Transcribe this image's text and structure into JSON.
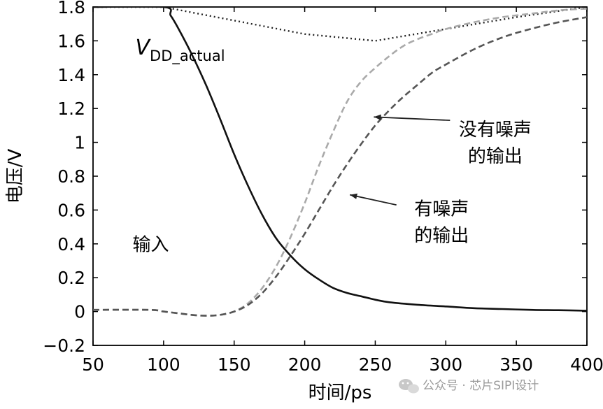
{
  "chart_data": {
    "type": "line",
    "title": "",
    "xlabel": "时间/ps",
    "ylabel": "电压/V",
    "xlim": [
      50,
      400
    ],
    "ylim": [
      -0.2,
      1.8
    ],
    "xticks": [
      50,
      100,
      150,
      200,
      250,
      300,
      350,
      400
    ],
    "yticks": [
      -0.2,
      0,
      0.2,
      0.4,
      0.6,
      0.8,
      1,
      1.2,
      1.4,
      1.6,
      1.8
    ],
    "xtick_labels": [
      "50",
      "100",
      "150",
      "200",
      "250",
      "300",
      "350",
      "400"
    ],
    "ytick_labels": [
      "−0.2",
      "0",
      "0.2",
      "0.4",
      "0.6",
      "0.8",
      "1",
      "1.2",
      "1.4",
      "1.6",
      "1.8"
    ],
    "series": [
      {
        "name": "VDD_actual",
        "color": "#222222",
        "style": "dotted",
        "x": [
          50,
          100,
          150,
          200,
          250,
          300,
          350,
          400
        ],
        "y": [
          1.8,
          1.8,
          1.72,
          1.64,
          1.6,
          1.67,
          1.74,
          1.8
        ]
      },
      {
        "name": "输入",
        "color": "#111111",
        "style": "solid",
        "x": [
          50,
          100,
          105,
          110,
          120,
          130,
          140,
          150,
          160,
          170,
          180,
          190,
          200,
          210,
          220,
          230,
          240,
          250,
          260,
          280,
          300,
          320,
          340,
          360,
          380,
          400
        ],
        "y": [
          1.8,
          1.8,
          1.75,
          1.68,
          1.52,
          1.34,
          1.14,
          0.93,
          0.74,
          0.57,
          0.43,
          0.33,
          0.25,
          0.19,
          0.14,
          0.11,
          0.09,
          0.07,
          0.055,
          0.04,
          0.03,
          0.02,
          0.015,
          0.01,
          0.008,
          0.005
        ]
      },
      {
        "name": "没有噪声的输出",
        "color": "#aaaaaa",
        "style": "dashed",
        "x": [
          50,
          90,
          100,
          110,
          120,
          130,
          140,
          150,
          160,
          170,
          180,
          190,
          200,
          210,
          220,
          230,
          240,
          250,
          260,
          270,
          280,
          290,
          300,
          320,
          340,
          360,
          380,
          400
        ],
        "y": [
          0.01,
          0.01,
          0.0,
          -0.01,
          -0.02,
          -0.025,
          -0.02,
          0.0,
          0.05,
          0.14,
          0.27,
          0.44,
          0.64,
          0.86,
          1.06,
          1.24,
          1.36,
          1.44,
          1.51,
          1.57,
          1.61,
          1.64,
          1.67,
          1.71,
          1.74,
          1.76,
          1.78,
          1.79
        ]
      },
      {
        "name": "有噪声的输出",
        "color": "#555555",
        "style": "dashed",
        "x": [
          50,
          90,
          100,
          110,
          120,
          130,
          140,
          150,
          160,
          170,
          180,
          190,
          200,
          210,
          220,
          230,
          240,
          250,
          260,
          270,
          280,
          290,
          300,
          320,
          340,
          360,
          380,
          400
        ],
        "y": [
          0.01,
          0.01,
          0.0,
          -0.01,
          -0.02,
          -0.025,
          -0.02,
          0.0,
          0.04,
          0.11,
          0.21,
          0.33,
          0.46,
          0.6,
          0.74,
          0.87,
          0.99,
          1.1,
          1.19,
          1.27,
          1.34,
          1.41,
          1.46,
          1.55,
          1.62,
          1.67,
          1.71,
          1.74
        ]
      }
    ],
    "annotations": [
      {
        "name": "vdd-label",
        "text_main": "V",
        "text_sub": "DD_actual",
        "at": [
          80,
          1.52
        ]
      },
      {
        "name": "input-label",
        "text": "输入",
        "at": [
          78,
          0.36
        ]
      },
      {
        "name": "no-noise-label",
        "lines": [
          "没有噪声",
          "的输出"
        ],
        "at": [
          335,
          1.04
        ],
        "arrow_from": [
          303,
          1.13
        ],
        "arrow_to": [
          249,
          1.15
        ]
      },
      {
        "name": "noise-label",
        "lines": [
          "有噪声",
          "的输出"
        ],
        "at": [
          297,
          0.57
        ],
        "arrow_from": [
          265,
          0.63
        ],
        "arrow_to": [
          232,
          0.69
        ]
      }
    ]
  },
  "watermark": {
    "text": "公众号 · 芯片SIPI设计",
    "icon": "wechat-icon"
  }
}
